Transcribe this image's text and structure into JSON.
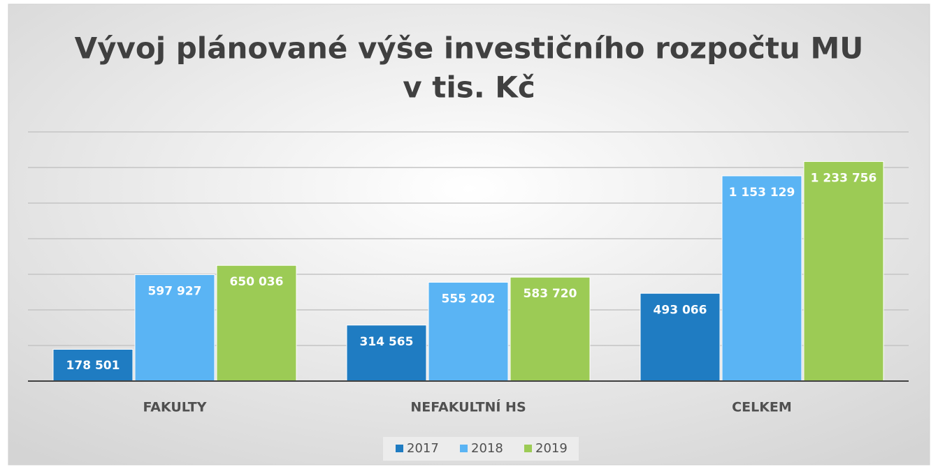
{
  "chart_data": {
    "type": "bar",
    "title": [
      "Vývoj plánované výše investičního rozpočtu MU",
      "v tis. Kč"
    ],
    "categories": [
      "FAKULTY",
      "NEFAKULTNÍ HS",
      "CELKEM"
    ],
    "series": [
      {
        "name": "2017",
        "color": "#1f7cc2",
        "values": [
          178501,
          314565,
          493066
        ],
        "value_labels": [
          "178 501",
          "314 565",
          "493 066"
        ]
      },
      {
        "name": "2018",
        "color": "#5ab4f4",
        "values": [
          597927,
          555202,
          1153129
        ],
        "value_labels": [
          "597 927",
          "555 202",
          "1 153 129"
        ]
      },
      {
        "name": "2019",
        "color": "#9ccb55",
        "values": [
          650036,
          583720,
          1233756
        ],
        "value_labels": [
          "650 036",
          "583 720",
          "1 233 756"
        ]
      }
    ],
    "ylim": [
      0,
      1400000
    ],
    "yticks": [
      0,
      200000,
      400000,
      600000,
      800000,
      1000000,
      1200000,
      1400000
    ],
    "grid": true,
    "legend": "bottom"
  }
}
